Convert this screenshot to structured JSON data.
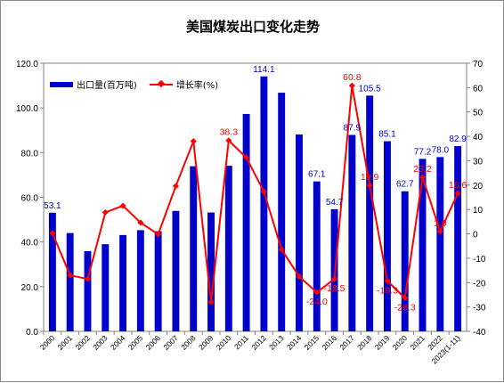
{
  "chart_data": {
    "type": "bar+line",
    "title": "美国煤炭出口变化走势",
    "categories": [
      "2000",
      "2001",
      "2002",
      "2003",
      "2004",
      "2005",
      "2006",
      "2007",
      "2008",
      "2009",
      "2010",
      "2011",
      "2012",
      "2013",
      "2014",
      "2015",
      "2016",
      "2017",
      "2018",
      "2019",
      "2020",
      "2021",
      "2022",
      "2023(1-11)"
    ],
    "series": [
      {
        "name": "出口量(百万吨)",
        "type": "bar",
        "axis": "left",
        "color": "#0000CC",
        "values": [
          53.1,
          44.0,
          35.9,
          39.0,
          43.1,
          45.3,
          44.8,
          53.9,
          73.9,
          53.2,
          74.1,
          97.3,
          114.1,
          106.8,
          88.1,
          67.1,
          54.7,
          87.9,
          105.5,
          85.1,
          62.7,
          77.2,
          78.0,
          82.9
        ],
        "labels": {
          "0": "53.1",
          "12": "114.1",
          "15": "67.1",
          "16": "54.7",
          "17": "87.9",
          "18": "105.5",
          "19": "85.1",
          "20": "62.7",
          "21": "77.2",
          "22": "78.0",
          "23": "82.9"
        }
      },
      {
        "name": "增长率(%)",
        "type": "line",
        "axis": "right",
        "color": "#FF0000",
        "values": [
          0.3,
          -17.0,
          -18.5,
          8.8,
          11.5,
          4.6,
          -0.2,
          19.6,
          38.0,
          -28.0,
          38.3,
          31.3,
          17.3,
          -6.4,
          -17.5,
          -24.0,
          -18.5,
          60.8,
          19.9,
          -19.3,
          -26.3,
          23.2,
          1.0,
          16.6
        ],
        "labels": {
          "10": "38.3",
          "15": "-24.0",
          "16": "-18.5",
          "17": "60.8",
          "18": "19.9",
          "19": "-19.3",
          "20": "-26.3",
          "21": "23.2",
          "22": "1.0",
          "23": "16.6"
        }
      }
    ],
    "y_left": {
      "min": 0,
      "max": 120,
      "ticks": [
        "0.0",
        "20.0",
        "40.0",
        "60.0",
        "80.0",
        "100.0",
        "120.0"
      ]
    },
    "y_right": {
      "min": -40,
      "max": 70,
      "ticks": [
        "-40",
        "-30",
        "-20",
        "-10",
        "0",
        "10",
        "20",
        "30",
        "40",
        "50",
        "60",
        "70"
      ]
    },
    "legend": {
      "placement": "top-left",
      "items": [
        {
          "label": "出口量(百万吨)",
          "kind": "bar"
        },
        {
          "label": "增长率(%)",
          "kind": "line"
        }
      ]
    },
    "grid": false
  }
}
